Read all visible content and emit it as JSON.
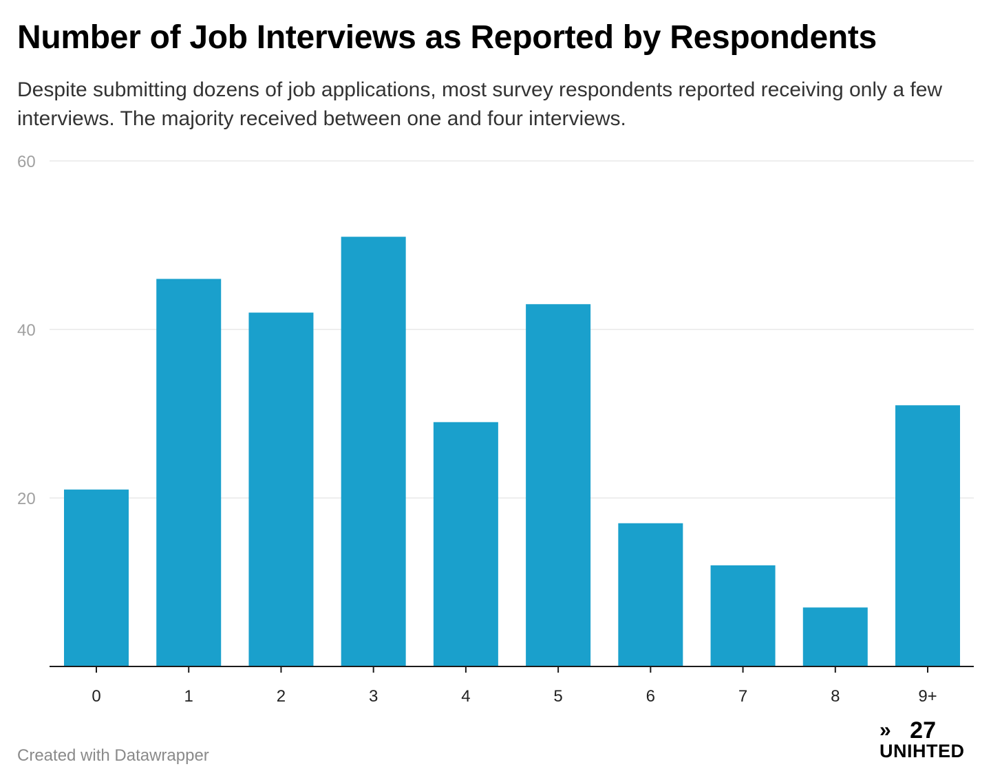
{
  "header": {
    "title": "Number of Job Interviews as Reported by Respondents",
    "subtitle": "Despite submitting dozens of job applications, most survey respondents reported receiving only a few interviews. The majority received between one and four interviews."
  },
  "footer": {
    "credit": "Created with Datawrapper",
    "logo_chevron": "»",
    "logo_number": "27",
    "logo_word": "UNIHTED"
  },
  "colors": {
    "bar": "#1aa0cc",
    "grid": "#e9e9e9",
    "axis": "#1a1a1a"
  },
  "chart_data": {
    "type": "bar",
    "title": "Number of Job Interviews as Reported by Respondents",
    "categories": [
      "0",
      "1",
      "2",
      "3",
      "4",
      "5",
      "6",
      "7",
      "8",
      "9+"
    ],
    "values": [
      21,
      46,
      42,
      51,
      29,
      43,
      17,
      12,
      7,
      31
    ],
    "ylim": [
      0,
      60
    ],
    "yticks": [
      20,
      40,
      60
    ],
    "grid": true,
    "legend": "none"
  }
}
